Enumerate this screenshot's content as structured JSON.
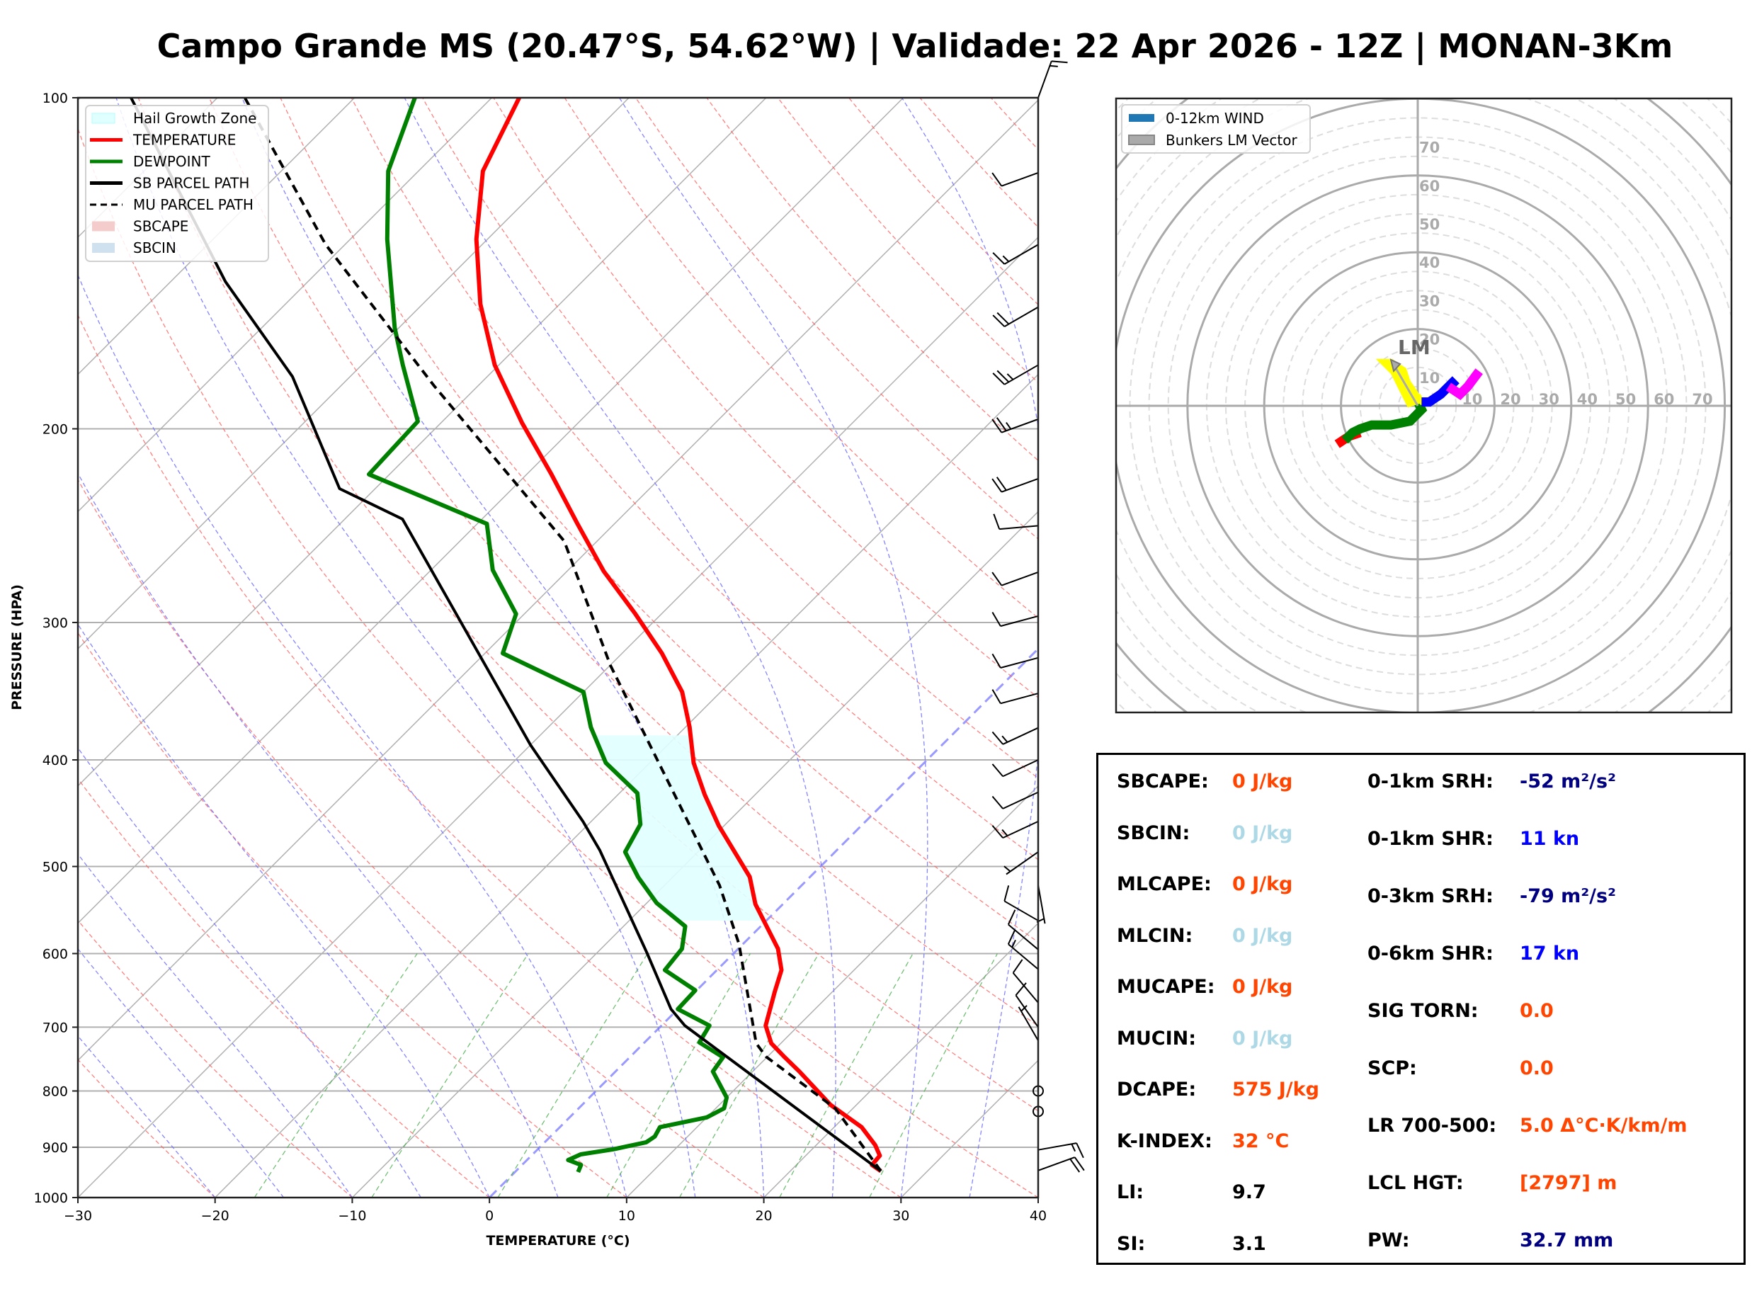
{
  "title": "Campo Grande MS (20.47°S, 54.62°W) | Validade: 22 Apr 2026 - 12Z | MONAN-3Km",
  "chart_data": [
    {
      "type": "line",
      "name": "skew-t",
      "xlabel": "TEMPERATURE (°C)",
      "ylabel": "PRESSURE (HPA)",
      "xlim": [
        -30,
        40
      ],
      "ylim": [
        1000,
        100
      ],
      "yscale": "log",
      "grid": true,
      "xticks": [
        -30,
        -20,
        -10,
        0,
        10,
        20,
        30,
        40
      ],
      "xtick_labels": [
        "−30",
        "−20",
        "−10",
        "0",
        "10",
        "20",
        "30",
        "40"
      ],
      "yticks": [
        100,
        200,
        300,
        400,
        500,
        600,
        700,
        800,
        900,
        1000
      ],
      "ytick_labels": [
        "100",
        "200",
        "300",
        "400",
        "500",
        "600",
        "700",
        "800",
        "900",
        "1000"
      ],
      "legend_position": "top-left",
      "legend": [
        {
          "label": "Hail Growth Zone",
          "type": "patch",
          "color": "#e0ffff"
        },
        {
          "label": "TEMPERATURE",
          "type": "line",
          "color": "#ff0000"
        },
        {
          "label": "DEWPOINT",
          "type": "line",
          "color": "#008000"
        },
        {
          "label": "SB PARCEL PATH",
          "type": "line",
          "color": "#000000"
        },
        {
          "label": "MU PARCEL PATH",
          "type": "dashed",
          "color": "#000000"
        },
        {
          "label": "SBCAPE",
          "type": "patch",
          "color": "#f4cccc"
        },
        {
          "label": "SBCIN",
          "type": "patch",
          "color": "#cfe0ee"
        }
      ],
      "series": [
        {
          "name": "TEMPERATURE",
          "color": "#ff0000",
          "p": [
            946,
            934,
            916,
            896,
            863,
            844.5,
            823.6,
            768,
            745.5,
            724,
            697.6,
            650,
            621,
            594,
            541,
            511,
            459,
            430,
            402.5,
            373.5,
            347,
            320,
            294.7,
            269.6,
            244,
            220,
            197.5,
            175,
            154,
            134.5,
            116.6,
            100
          ],
          "t": [
            26.6,
            25.5,
            25.4,
            24.3,
            22.0,
            20.2,
            18.1,
            13.4,
            11.3,
            9.3,
            7.6,
            5.8,
            4.7,
            2.9,
            -2.0,
            -4.4,
            -10.4,
            -13.7,
            -16.8,
            -19.7,
            -22.8,
            -27.1,
            -31.9,
            -37.3,
            -42.7,
            -48.2,
            -54.1,
            -60.3,
            -65.8,
            -70.8,
            -75.3,
            -78.0
          ]
        },
        {
          "name": "DEWPOINT",
          "color": "#008000",
          "p": [
            948,
            934,
            924.4,
            913.5,
            904,
            890.7,
            880,
            863,
            845.5,
            829.6,
            811,
            768,
            745.5,
            722.7,
            697.6,
            674,
            648,
            621,
            594,
            566.7,
            539.6,
            511.5,
            485,
            457.8,
            428.8,
            402.5,
            373.5,
            347,
            320,
            294.7,
            268.8,
            244,
            220,
            196.9,
            175,
            161.9,
            134.5,
            116.6,
            100
          ],
          "t": [
            4.6,
            4.3,
            3.0,
            3.5,
            5.5,
            7.4,
            7.6,
            7.3,
            10.0,
            10.6,
            10.0,
            7.1,
            6.8,
            4.0,
            3.5,
            0.0,
            -0.1,
            -3.8,
            -4.1,
            -5.5,
            -9.3,
            -12.5,
            -15.3,
            -16.2,
            -18.7,
            -23.2,
            -26.9,
            -30.0,
            -38.7,
            -40.6,
            -45.5,
            -49.3,
            -61.5,
            -61.8,
            -67.0,
            -70.3,
            -77.3,
            -82.2,
            -85.6
          ]
        },
        {
          "name": "SB PARCEL PATH",
          "color": "#000000",
          "p": [
            946,
            697.6,
            674,
            598.6,
            483,
            455,
            387.7,
            241.6,
            226.7,
            179.3,
            147,
            100
          ],
          "t": [
            26.6,
            1.7,
            -0.5,
            -6.4,
            -17.3,
            -20.6,
            -30.0,
            -55.8,
            -62.6,
            -74.2,
            -86.0,
            -106.3
          ]
        },
        {
          "name": "MU PARCEL PATH",
          "color": "#000000",
          "dashed": true,
          "p": [
            946,
            829.6,
            744.6,
            724,
            588,
            520,
            328,
            253,
            182.8,
            136,
            100
          ],
          "t": [
            26.6,
            18.7,
            9.9,
            8.2,
            -0.3,
            -6.0,
            -30.0,
            -42.4,
            -63.2,
            -81.4,
            -98.0
          ]
        }
      ],
      "hail_growth_zone": {
        "p_top": 380,
        "p_bottom": 560,
        "color": "#e0ffff"
      },
      "wind_barbs": [
        {
          "p": 100,
          "speed_kt": 15,
          "dir_deg": 20
        },
        {
          "p": 117,
          "speed_kt": 10,
          "dir_deg": 250
        },
        {
          "p": 136,
          "speed_kt": 15,
          "dir_deg": 240
        },
        {
          "p": 155,
          "speed_kt": 20,
          "dir_deg": 240
        },
        {
          "p": 175,
          "speed_kt": 25,
          "dir_deg": 240
        },
        {
          "p": 196,
          "speed_kt": 25,
          "dir_deg": 250
        },
        {
          "p": 222,
          "speed_kt": 20,
          "dir_deg": 250
        },
        {
          "p": 245,
          "speed_kt": 10,
          "dir_deg": 265
        },
        {
          "p": 270,
          "speed_kt": 10,
          "dir_deg": 250
        },
        {
          "p": 296,
          "speed_kt": 10,
          "dir_deg": 255
        },
        {
          "p": 323,
          "speed_kt": 10,
          "dir_deg": 255
        },
        {
          "p": 348,
          "speed_kt": 10,
          "dir_deg": 255
        },
        {
          "p": 374,
          "speed_kt": 15,
          "dir_deg": 245
        },
        {
          "p": 400,
          "speed_kt": 10,
          "dir_deg": 245
        },
        {
          "p": 428,
          "speed_kt": 10,
          "dir_deg": 245
        },
        {
          "p": 455,
          "speed_kt": 15,
          "dir_deg": 245
        },
        {
          "p": 485,
          "speed_kt": 5,
          "dir_deg": 235
        },
        {
          "p": 520,
          "speed_kt": 5,
          "dir_deg": 170
        },
        {
          "p": 560,
          "speed_kt": 10,
          "dir_deg": 300
        },
        {
          "p": 595,
          "speed_kt": 10,
          "dir_deg": 310
        },
        {
          "p": 620,
          "speed_kt": 15,
          "dir_deg": 310
        },
        {
          "p": 665,
          "speed_kt": 10,
          "dir_deg": 320
        },
        {
          "p": 700,
          "speed_kt": 10,
          "dir_deg": 325
        },
        {
          "p": 720,
          "speed_kt": 5,
          "dir_deg": 330
        },
        {
          "p": 800,
          "speed_kt": 0,
          "dir_deg": 0
        },
        {
          "p": 835,
          "speed_kt": 0,
          "dir_deg": 0
        },
        {
          "p": 905,
          "speed_kt": 15,
          "dir_deg": 80
        },
        {
          "p": 945,
          "speed_kt": 20,
          "dir_deg": 70
        }
      ]
    },
    {
      "type": "line",
      "name": "hodograph",
      "xlim": [
        -75,
        80
      ],
      "ylim": [
        -80,
        80
      ],
      "rings_kt": [
        10,
        20,
        30,
        40,
        50,
        60,
        70
      ],
      "ring_labels": [
        "10",
        "20",
        "30",
        "40",
        "50",
        "60",
        "70"
      ],
      "legend_position": "top-left",
      "legend": [
        {
          "label": "0-12km WIND",
          "color": "#1f77b4"
        },
        {
          "label": "Bunkers LM Vector",
          "color": "#aaaaaa"
        }
      ],
      "lm_label": "LM",
      "bunkers_lm": {
        "u": -7,
        "v": 12
      },
      "series": [
        {
          "name": "0-1km",
          "color": "#ff0000",
          "u": [
            -21,
            -18,
            -15
          ],
          "v": [
            -10,
            -8,
            -7
          ]
        },
        {
          "name": "1-3km",
          "color": "#008000",
          "u": [
            -19,
            -17,
            -15,
            -12,
            -7,
            -2,
            0,
            1,
            0
          ],
          "v": [
            -9,
            -7,
            -6,
            -5,
            -5,
            -4,
            -2,
            -1,
            1
          ]
        },
        {
          "name": "3-6km",
          "color": "#ffff00",
          "u": [
            0,
            1,
            -2,
            -4,
            -6,
            -8,
            -7,
            -4,
            -3,
            -1,
            0
          ],
          "v": [
            1,
            2,
            1,
            5,
            9,
            11,
            11,
            9,
            6,
            3,
            1
          ]
        },
        {
          "name": "6-9km",
          "color": "#0000ff",
          "u": [
            1,
            3,
            6,
            8,
            9,
            10
          ],
          "v": [
            1,
            1,
            3,
            5,
            6,
            5
          ]
        },
        {
          "name": "9-12km",
          "color": "#ff00ff",
          "u": [
            8,
            11,
            13,
            16
          ],
          "v": [
            5,
            3,
            5,
            9
          ]
        }
      ]
    }
  ],
  "stats": {
    "left": [
      {
        "label": "SBCAPE:",
        "value": "0 J/kg",
        "color": "#ff4500"
      },
      {
        "label": "SBCIN:",
        "value": "0 J/kg",
        "color": "#add8e6"
      },
      {
        "label": "MLCAPE:",
        "value": "0 J/kg",
        "color": "#ff4500"
      },
      {
        "label": "MLCIN:",
        "value": "0 J/kg",
        "color": "#add8e6"
      },
      {
        "label": "MUCAPE:",
        "value": "0 J/kg",
        "color": "#ff4500"
      },
      {
        "label": "MUCIN:",
        "value": "0 J/kg",
        "color": "#add8e6"
      },
      {
        "label": "DCAPE:",
        "value": "575 J/kg",
        "color": "#ff4500"
      },
      {
        "label": "K-INDEX:",
        "value": "32 °C",
        "color": "#ff4500"
      },
      {
        "label": "LI:",
        "value": "9.7",
        "color": "#000000"
      },
      {
        "label": "SI:",
        "value": "3.1",
        "color": "#000000"
      }
    ],
    "right": [
      {
        "label": "0-1km SRH:",
        "value": "-52 m²/s²",
        "color": "#000080"
      },
      {
        "label": "0-1km SHR:",
        "value": "11 kn",
        "color": "#0000ff"
      },
      {
        "label": "0-3km SRH:",
        "value": "-79 m²/s²",
        "color": "#000080"
      },
      {
        "label": "0-6km SHR:",
        "value": "17 kn",
        "color": "#0000ff"
      },
      {
        "label": "SIG TORN:",
        "value": "0.0",
        "color": "#ff4500"
      },
      {
        "label": "SCP:",
        "value": "0.0",
        "color": "#ff4500"
      },
      {
        "label": "LR 700-500:",
        "value": "5.0 Δ°C·K/km/m",
        "color": "#ff4500"
      },
      {
        "label": "LCL HGT:",
        "value": "[2797] m",
        "color": "#ff4500"
      },
      {
        "label": "PW:",
        "value": "32.7 mm",
        "color": "#000080"
      }
    ]
  }
}
